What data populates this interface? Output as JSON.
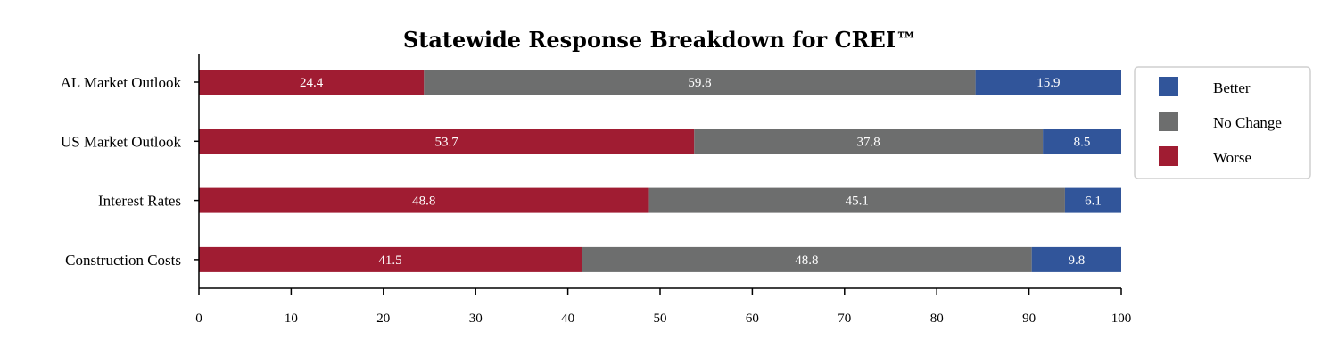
{
  "chart_data": {
    "type": "bar",
    "orientation": "horizontal",
    "stacked": true,
    "title": "Statewide Response Breakdown for CREI™",
    "xlabel": "",
    "ylabel": "",
    "xlim": [
      0,
      100
    ],
    "xticks": [
      0,
      10,
      20,
      30,
      40,
      50,
      60,
      70,
      80,
      90,
      100
    ],
    "categories": [
      "AL Market Outlook",
      "US Market Outlook",
      "Interest Rates",
      "Construction Costs"
    ],
    "series": [
      {
        "name": "Worse",
        "color": "#a01c32",
        "values": [
          24.4,
          53.7,
          48.8,
          41.5
        ]
      },
      {
        "name": "No Change",
        "color": "#6d6e6e",
        "values": [
          59.8,
          37.8,
          45.1,
          48.8
        ]
      },
      {
        "name": "Better",
        "color": "#31559a",
        "values": [
          15.9,
          8.5,
          6.1,
          9.8
        ]
      }
    ],
    "legend_order": [
      "Better",
      "No Change",
      "Worse"
    ],
    "legend_position": "right",
    "grid": false
  }
}
